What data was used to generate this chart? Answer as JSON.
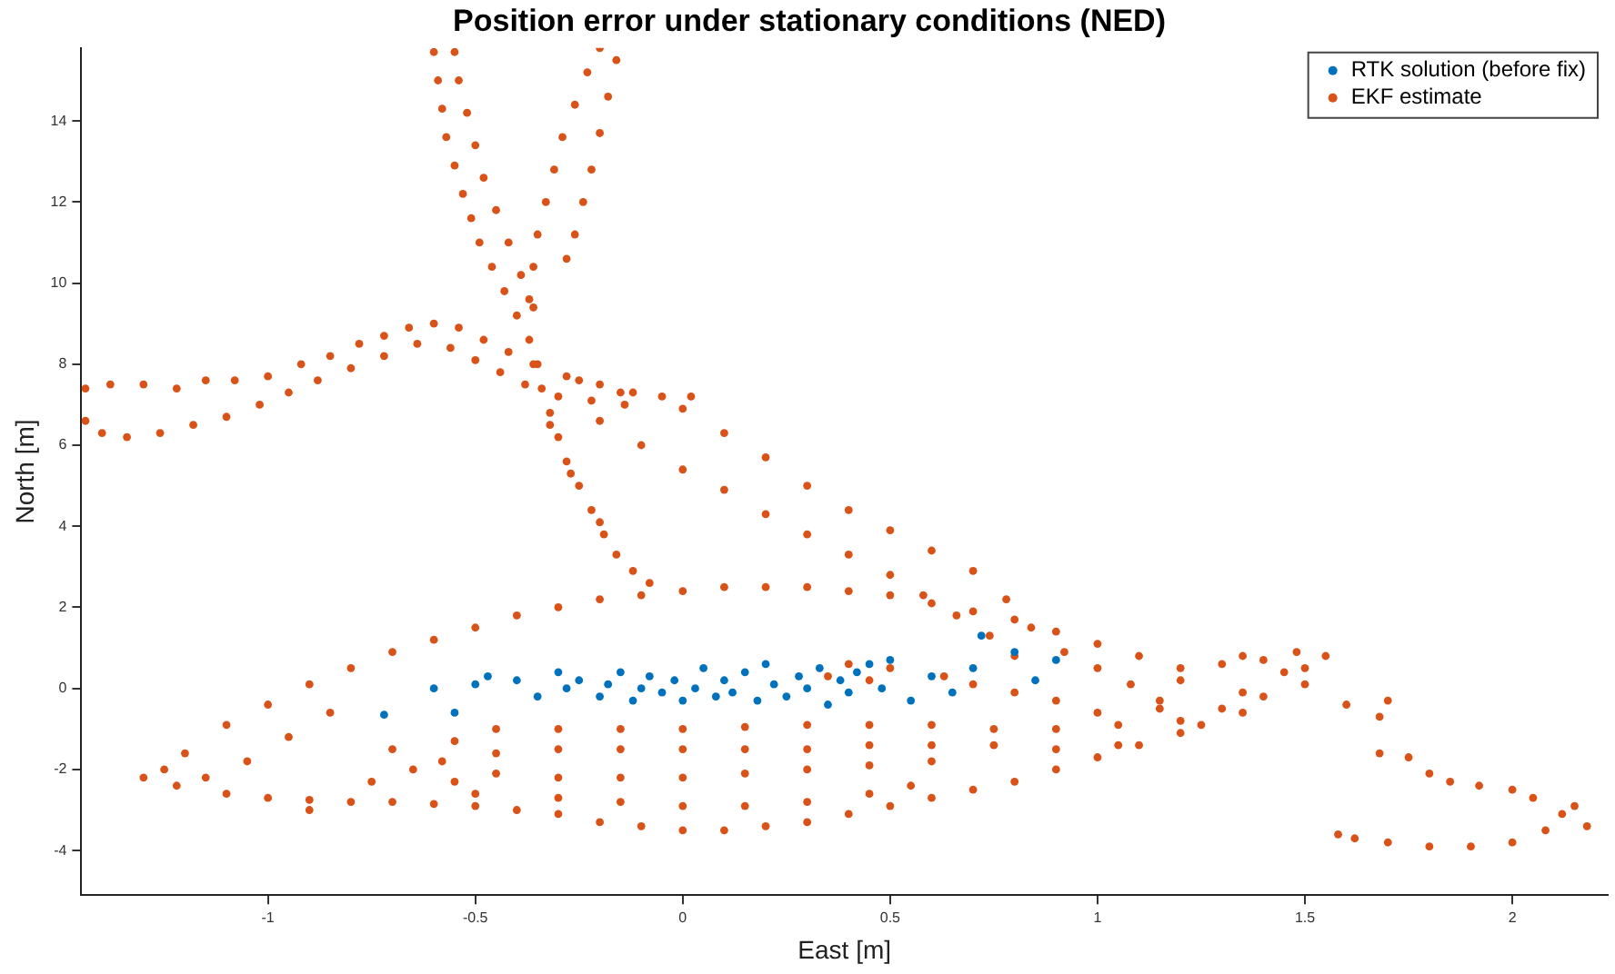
{
  "chart_data": {
    "type": "scatter",
    "title": "Position error under stationary conditions (NED)",
    "xlabel": "East [m]",
    "ylabel": "North [m]",
    "xlim": [
      -1.45,
      2.23
    ],
    "ylim": [
      -5.1,
      15.8
    ],
    "xticks": [
      -1,
      -0.5,
      0,
      0.5,
      1,
      1.5,
      2
    ],
    "yticks": [
      -4,
      -2,
      0,
      2,
      4,
      6,
      8,
      10,
      12,
      14
    ],
    "grid": false,
    "legend": "top right",
    "marker": "circle",
    "series": [
      {
        "name": "RTK solution (before fix)",
        "color": "#0072bd",
        "x": [
          -0.72,
          -0.5,
          -0.47,
          -0.4,
          -0.35,
          -0.3,
          -0.28,
          -0.25,
          -0.2,
          -0.18,
          -0.15,
          -0.12,
          -0.1,
          -0.08,
          -0.05,
          -0.02,
          0.0,
          0.03,
          0.05,
          0.08,
          0.1,
          0.12,
          0.15,
          0.18,
          0.2,
          0.22,
          0.25,
          0.28,
          0.3,
          0.33,
          0.35,
          0.38,
          0.4,
          0.42,
          0.45,
          0.48,
          0.5,
          0.55,
          0.6,
          0.65,
          0.7,
          0.72,
          0.8,
          0.9,
          0.85,
          -0.6,
          -0.55
        ],
        "values": [
          -0.65,
          0.1,
          0.3,
          0.2,
          -0.2,
          0.4,
          0.0,
          0.2,
          -0.2,
          0.1,
          0.4,
          -0.3,
          0.0,
          0.3,
          -0.1,
          0.2,
          -0.3,
          0.0,
          0.5,
          -0.2,
          0.2,
          -0.1,
          0.4,
          -0.3,
          0.6,
          0.1,
          -0.2,
          0.3,
          0.0,
          0.5,
          -0.4,
          0.2,
          -0.1,
          0.4,
          0.6,
          0.0,
          0.7,
          -0.3,
          0.3,
          -0.1,
          0.5,
          1.3,
          0.9,
          0.7,
          0.2,
          0.0,
          -0.6
        ]
      },
      {
        "name": "EKF estimate",
        "color": "#d95319",
        "x": [
          -1.44,
          -1.38,
          -1.3,
          -1.22,
          -1.15,
          -1.08,
          -1.0,
          -0.92,
          -0.85,
          -0.78,
          -0.72,
          -0.66,
          -0.6,
          -0.54,
          -0.48,
          -0.42,
          -0.35,
          -0.28,
          -0.2,
          -0.12,
          -0.05,
          0.02,
          -1.44,
          -1.4,
          -1.34,
          -1.26,
          -1.18,
          -1.1,
          -1.02,
          -0.95,
          -0.88,
          -0.8,
          -0.72,
          -0.64,
          -0.56,
          -0.5,
          -0.44,
          -0.38,
          -0.3,
          -0.22,
          -0.14,
          -0.6,
          -0.59,
          -0.58,
          -0.57,
          -0.55,
          -0.53,
          -0.51,
          -0.49,
          -0.46,
          -0.43,
          -0.4,
          -0.37,
          -0.55,
          -0.54,
          -0.52,
          -0.5,
          -0.48,
          -0.45,
          -0.42,
          -0.39,
          -0.36,
          -0.2,
          -0.23,
          -0.26,
          -0.29,
          -0.31,
          -0.33,
          -0.35,
          -0.36,
          -0.37,
          -0.16,
          -0.18,
          -0.2,
          -0.22,
          -0.24,
          -0.26,
          -0.28,
          -0.36,
          -0.34,
          -0.32,
          -0.3,
          -0.28,
          -0.25,
          -0.22,
          -0.19,
          -0.16,
          -0.12,
          -0.08,
          -0.32,
          -0.27,
          -0.2,
          -0.25,
          -0.15,
          0.0,
          0.1,
          0.2,
          0.3,
          0.4,
          0.5,
          0.6,
          0.7,
          0.78,
          0.84,
          0.92,
          1.0,
          1.08,
          1.15,
          -0.2,
          -0.1,
          0.0,
          0.1,
          0.2,
          0.3,
          0.4,
          0.5,
          0.58,
          0.66,
          0.74,
          0.8,
          -1.2,
          -1.1,
          -1.0,
          -0.9,
          -0.8,
          -0.7,
          -0.6,
          -0.5,
          -0.4,
          -0.3,
          -0.2,
          -0.1,
          0.0,
          0.1,
          0.2,
          0.3,
          0.4,
          0.5,
          0.6,
          0.7,
          0.8,
          0.9,
          1.0,
          1.1,
          1.2,
          -1.25,
          -1.22,
          -1.1,
          -1.0,
          -0.9,
          -0.8,
          -0.7,
          -0.6,
          -0.5,
          -0.4,
          -0.3,
          -0.2,
          -0.1,
          0.0,
          0.1,
          0.2,
          0.3,
          0.4,
          0.5,
          0.6,
          0.7,
          0.8,
          0.9,
          1.0,
          1.1,
          1.2,
          -0.45,
          -0.3,
          -0.15,
          0.0,
          0.15,
          0.3,
          0.45,
          0.6,
          0.75,
          0.9,
          1.05,
          1.2,
          1.35,
          -0.45,
          -0.3,
          -0.15,
          0.0,
          0.15,
          0.3,
          0.45,
          0.6,
          0.75,
          0.9,
          1.05,
          -0.45,
          -0.3,
          -0.15,
          0.0,
          0.15,
          0.3,
          0.45,
          0.6,
          -0.3,
          -0.15,
          0.0,
          0.15,
          0.3,
          0.45,
          0.55,
          -0.55,
          -0.58,
          -0.55,
          -0.5,
          -0.65,
          -0.7,
          -0.75,
          -1.05,
          -1.15,
          -0.95,
          -0.85,
          0.4,
          0.5,
          0.63,
          0.7,
          0.8,
          0.9,
          1.0,
          0.35,
          0.45,
          1.2,
          1.3,
          1.35,
          1.4,
          1.45,
          1.5,
          1.55,
          1.48,
          1.5,
          1.4,
          1.3,
          1.25,
          1.35,
          1.15,
          1.6,
          1.68,
          1.7,
          1.68,
          1.75,
          1.8,
          1.85,
          1.92,
          2.0,
          2.05,
          1.62,
          1.7,
          1.8,
          1.9,
          2.0,
          2.08,
          2.12,
          2.15,
          2.18,
          1.58,
          -1.3,
          -0.9
        ],
        "values": [
          7.4,
          7.5,
          7.5,
          7.4,
          7.6,
          7.6,
          7.7,
          8.0,
          8.2,
          8.5,
          8.7,
          8.9,
          9.0,
          8.9,
          8.6,
          8.3,
          8.0,
          7.7,
          7.5,
          7.3,
          7.2,
          7.2,
          6.6,
          6.3,
          6.2,
          6.3,
          6.5,
          6.7,
          7.0,
          7.3,
          7.6,
          7.9,
          8.2,
          8.5,
          8.4,
          8.1,
          7.8,
          7.5,
          7.2,
          7.1,
          7.0,
          15.7,
          15.0,
          14.3,
          13.6,
          12.9,
          12.2,
          11.6,
          11.0,
          10.4,
          9.8,
          9.2,
          8.6,
          15.7,
          15.0,
          14.2,
          13.4,
          12.6,
          11.8,
          11.0,
          10.2,
          9.4,
          15.8,
          15.2,
          14.4,
          13.6,
          12.8,
          12.0,
          11.2,
          10.4,
          9.6,
          15.5,
          14.6,
          13.7,
          12.8,
          12.0,
          11.2,
          10.6,
          8.0,
          7.4,
          6.8,
          6.2,
          5.6,
          5.0,
          4.4,
          3.8,
          3.3,
          2.9,
          2.6,
          6.5,
          5.3,
          4.1,
          7.6,
          7.3,
          6.9,
          6.3,
          5.7,
          5.0,
          4.4,
          3.9,
          3.4,
          2.9,
          2.2,
          1.5,
          0.9,
          0.5,
          0.1,
          -0.3,
          6.6,
          6.0,
          5.4,
          4.9,
          4.3,
          3.8,
          3.3,
          2.8,
          2.3,
          1.8,
          1.3,
          0.8,
          -1.6,
          -0.9,
          -0.4,
          0.1,
          0.5,
          0.9,
          1.2,
          1.5,
          1.8,
          2.0,
          2.2,
          2.3,
          2.4,
          2.5,
          2.5,
          2.5,
          2.4,
          2.3,
          2.1,
          1.9,
          1.7,
          1.4,
          1.1,
          0.8,
          0.5,
          -2.0,
          -2.4,
          -2.6,
          -2.7,
          -2.75,
          -2.8,
          -2.8,
          -2.85,
          -2.9,
          -3.0,
          -3.1,
          -3.3,
          -3.4,
          -3.5,
          -3.5,
          -3.4,
          -3.3,
          -3.1,
          -2.9,
          -2.7,
          -2.5,
          -2.3,
          -2.0,
          -1.7,
          -1.4,
          -1.1,
          -1.0,
          -1.0,
          -1.0,
          -1.0,
          -0.95,
          -0.9,
          -0.9,
          -0.9,
          -1.0,
          -1.0,
          -0.9,
          -0.8,
          -0.6,
          -1.6,
          -1.5,
          -1.5,
          -1.5,
          -1.5,
          -1.5,
          -1.4,
          -1.4,
          -1.4,
          -1.5,
          -1.4,
          -2.1,
          -2.2,
          -2.2,
          -2.2,
          -2.1,
          -2.0,
          -1.9,
          -1.8,
          -2.7,
          -2.8,
          -2.9,
          -2.9,
          -2.8,
          -2.6,
          -2.4,
          -1.3,
          -1.8,
          -2.3,
          -2.6,
          -2.0,
          -1.5,
          -2.3,
          -1.8,
          -2.2,
          -1.2,
          -0.6,
          0.6,
          0.5,
          0.3,
          0.1,
          -0.1,
          -0.3,
          -0.6,
          0.3,
          0.2,
          0.2,
          0.6,
          0.8,
          0.7,
          0.4,
          0.5,
          0.8,
          0.9,
          0.1,
          -0.2,
          -0.5,
          -0.9,
          -0.1,
          -0.5,
          -0.4,
          -0.7,
          -0.3,
          -1.6,
          -1.7,
          -2.1,
          -2.3,
          -2.4,
          -2.5,
          -2.7,
          -3.7,
          -3.8,
          -3.9,
          -3.9,
          -3.8,
          -3.5,
          -3.1,
          -2.9,
          -3.4,
          -3.6,
          -2.2,
          -3.0
        ]
      }
    ]
  }
}
